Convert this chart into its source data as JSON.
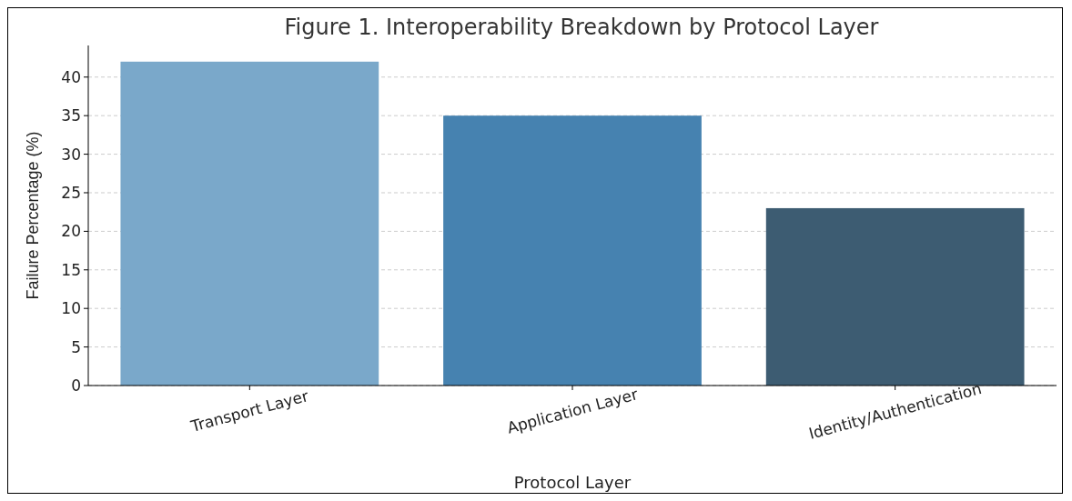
{
  "chart_data": {
    "type": "bar",
    "title": "Figure 1. Interoperability Breakdown by Protocol Layer",
    "xlabel": "Protocol Layer",
    "ylabel": "Failure Percentage (%)",
    "categories": [
      "Transport Layer",
      "Application Layer",
      "Identity/Authentication"
    ],
    "values": [
      42,
      35,
      23
    ],
    "colors": [
      "#7aa8ca",
      "#4682b0",
      "#3d5c72"
    ],
    "ylim": [
      0,
      44.1
    ],
    "yticks": [
      0,
      5,
      10,
      15,
      20,
      25,
      30,
      35,
      40
    ],
    "grid": "y"
  }
}
